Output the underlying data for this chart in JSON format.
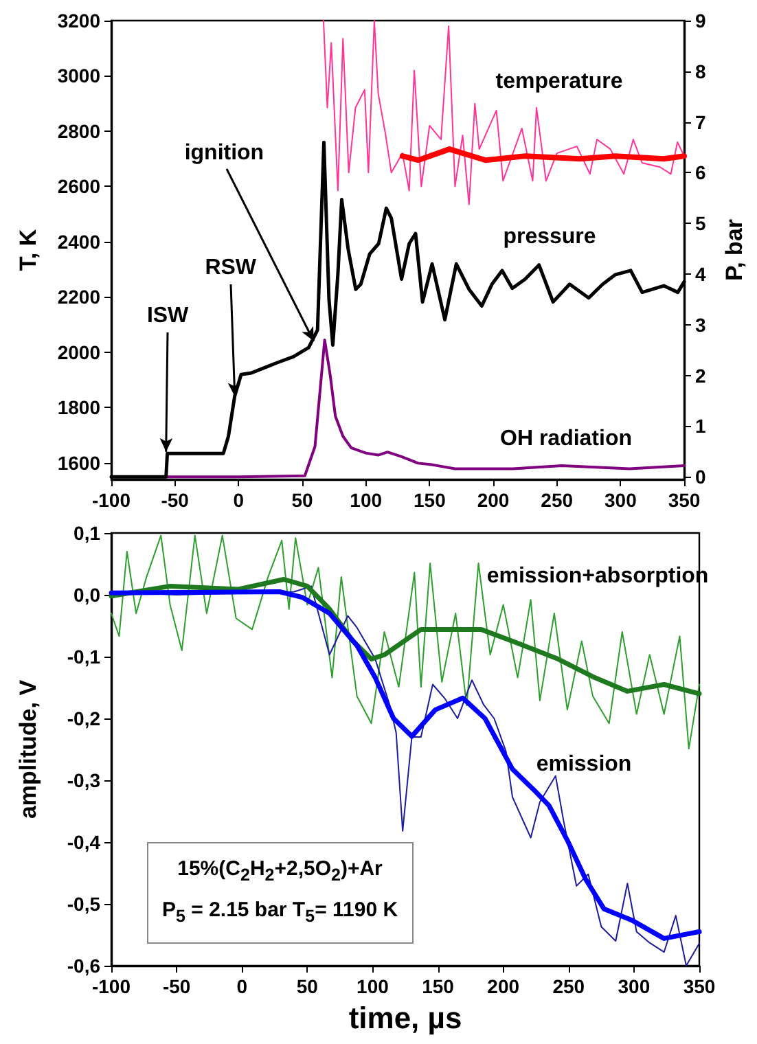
{
  "chart_data": [
    {
      "type": "line",
      "ylabel": "T, K",
      "y2label": "P, bar",
      "xlim": [
        -100,
        350
      ],
      "xticks": [
        -100,
        -50,
        0,
        50,
        100,
        150,
        200,
        250,
        300,
        350
      ],
      "ylim": [
        1540,
        3200
      ],
      "yticks": [
        1600,
        1800,
        2000,
        2200,
        2400,
        2600,
        2800,
        3000,
        3200
      ],
      "y2lim": [
        -0.05,
        9
      ],
      "y2ticks": [
        0,
        1,
        2,
        3,
        4,
        5,
        6,
        7,
        8,
        9
      ],
      "annotations": [
        {
          "text": "ISW",
          "x": -57,
          "y": 1640
        },
        {
          "text": "RSW",
          "x": -3,
          "y": 1840
        },
        {
          "text": "ignition",
          "x": 59,
          "y": 2040
        }
      ],
      "series": [
        {
          "color": "#ff3399",
          "x": [
            66.7,
            69.7,
            72.8,
            78,
            82,
            86.5,
            91.8,
            99,
            102,
            106.6,
            109.7,
            115,
            120,
            128.7,
            134,
            138,
            143.5,
            150,
            159,
            165,
            170,
            176,
            181,
            185.6,
            189,
            202.5,
            207.7,
            222.5,
            231,
            234,
            241.5,
            250,
            265.7,
            276,
            281.5,
            292,
            302.6,
            310,
            317,
            331,
            339.5,
            344.7,
            350
          ],
          "values": [
            3200,
            2885,
            3120,
            2585,
            3135,
            2650,
            2885,
            2950,
            2650,
            3200,
            2935,
            2800,
            2650,
            2720,
            2585,
            3020,
            2600,
            2820,
            2770,
            3180,
            2600,
            2785,
            2535,
            2900,
            2735,
            2875,
            2620,
            2810,
            2620,
            2885,
            2620,
            2720,
            2745,
            2645,
            2770,
            2735,
            2645,
            2770,
            2685,
            2670,
            2645,
            2760,
            2710
          ]
        },
        {
          "name": "temperature",
          "color": "#ff0000",
          "x": [
            128.7,
            141,
            165.6,
            194,
            225.6,
            268,
            296,
            334,
            350
          ],
          "values": [
            2710,
            2695,
            2735,
            2695,
            2710,
            2700,
            2710,
            2700,
            2710
          ]
        },
        {
          "name": "pressure",
          "color": "#000000",
          "axis": "y2",
          "x": [
            -100,
            -57,
            -56,
            -12,
            -8,
            -3,
            2,
            10,
            20,
            30,
            43,
            55,
            62,
            67,
            71,
            74,
            78,
            81,
            86,
            92,
            96,
            103,
            110,
            116,
            120,
            124,
            128,
            134,
            139,
            144.5,
            152,
            162,
            171,
            181,
            191,
            199,
            207,
            215,
            225,
            236,
            247,
            260,
            275,
            286,
            296,
            308,
            317,
            334,
            345,
            350
          ],
          "values": [
            0,
            0,
            0.46,
            0.46,
            0.8,
            1.6,
            2.02,
            2.05,
            2.15,
            2.25,
            2.37,
            2.55,
            2.9,
            6.6,
            3.5,
            2.6,
            4.0,
            5.47,
            4.5,
            3.7,
            3.8,
            4.4,
            4.6,
            5.3,
            5.1,
            4.5,
            3.9,
            4.6,
            4.8,
            3.45,
            4.2,
            3.1,
            4.2,
            3.7,
            3.37,
            3.8,
            4.07,
            3.72,
            3.9,
            4.18,
            3.45,
            3.8,
            3.53,
            3.8,
            3.99,
            4.07,
            3.64,
            3.77,
            3.64,
            3.85
          ]
        },
        {
          "name": "OH radiation",
          "color": "#800080",
          "axis": "y2",
          "x": [
            -100,
            0,
            52,
            60,
            67.6,
            72,
            76,
            82,
            88.6,
            100,
            109.7,
            117,
            128,
            141,
            152,
            170,
            215,
            254,
            307,
            350
          ],
          "values": [
            0,
            0,
            0.02,
            0.6,
            2.7,
            2.0,
            1.2,
            0.8,
            0.57,
            0.47,
            0.43,
            0.49,
            0.4,
            0.27,
            0.24,
            0.16,
            0.16,
            0.22,
            0.16,
            0.22
          ]
        }
      ]
    },
    {
      "type": "line",
      "xlabel": "time, µs",
      "ylabel": "amplitude, V",
      "xlim": [
        -100,
        350
      ],
      "xticks": [
        -100,
        -50,
        0,
        50,
        100,
        150,
        200,
        250,
        300,
        350
      ],
      "ylim": [
        -0.6,
        0.1
      ],
      "yticks": [
        {
          "value": -0.6,
          "label": "-0,6"
        },
        {
          "value": -0.5,
          "label": "-0,5"
        },
        {
          "value": -0.4,
          "label": "-0,4"
        },
        {
          "value": -0.3,
          "label": "-0,3"
        },
        {
          "value": -0.2,
          "label": "-0,2"
        },
        {
          "value": -0.1,
          "label": "-0,1"
        },
        {
          "value": 0,
          "label": "0,0"
        },
        {
          "value": 0.1,
          "label": "0,1"
        }
      ],
      "annotations": [
        "15%(C$_{2}$H$_{2}$+2,5O$_{2}$)+Ar",
        "P$_{5}$ = 2.15 bar   T$_{5}$= 1190 K"
      ],
      "series": [
        {
          "color": "#2e9e2e",
          "x": [
            -100,
            -94,
            -88,
            -81,
            -73,
            -62,
            -55,
            -46,
            -36,
            -27,
            -15,
            -4.5,
            7.8,
            20,
            30.5,
            36,
            41,
            50,
            58.5,
            69,
            76,
            88,
            99,
            109,
            120,
            132,
            137,
            144,
            153,
            163.5,
            172,
            181,
            190,
            200,
            211,
            221,
            228,
            239,
            249,
            260,
            268.5,
            281,
            291,
            302,
            312,
            323,
            335,
            342,
            350
          ],
          "values": [
            -0.03,
            -0.067,
            0.07,
            -0.03,
            0.029,
            0.096,
            -0.016,
            -0.09,
            0.096,
            -0.03,
            0.096,
            -0.038,
            -0.056,
            0.029,
            0.088,
            -0.023,
            0.092,
            -0.016,
            0.044,
            -0.134,
            0.029,
            -0.164,
            -0.208,
            -0.06,
            -0.149,
            0.036,
            -0.149,
            0.051,
            -0.141,
            -0.03,
            -0.179,
            0.051,
            -0.097,
            -0.016,
            -0.134,
            -0.008,
            -0.171,
            -0.03,
            -0.186,
            -0.075,
            -0.164,
            -0.208,
            -0.06,
            -0.193,
            -0.097,
            -0.193,
            -0.067,
            -0.249,
            -0.145
          ]
        },
        {
          "color": "#1c1c9c",
          "x": [
            -100,
            -50,
            0,
            40,
            43,
            53,
            67,
            81,
            88,
            102,
            113,
            118,
            123,
            130,
            137,
            146,
            155,
            165,
            176,
            185,
            193,
            202,
            207,
            221,
            228,
            240,
            246,
            256,
            265,
            275,
            286,
            295,
            302,
            312,
            323,
            332,
            340,
            350
          ],
          "values": [
            0.005,
            0,
            0.003,
            0.005,
            0.007,
            0.014,
            -0.097,
            -0.034,
            -0.053,
            -0.104,
            -0.178,
            -0.223,
            -0.382,
            -0.23,
            -0.23,
            -0.145,
            -0.167,
            -0.2,
            -0.138,
            -0.178,
            -0.2,
            -0.253,
            -0.327,
            -0.393,
            -0.335,
            -0.293,
            -0.364,
            -0.471,
            -0.452,
            -0.537,
            -0.56,
            -0.467,
            -0.545,
            -0.563,
            -0.578,
            -0.519,
            -0.6,
            -0.564
          ]
        },
        {
          "name": "emission+absorption",
          "color": "#1f7a1f",
          "x": [
            -100,
            -55,
            -2.7,
            32,
            50,
            67,
            85,
            99,
            109,
            137,
            183,
            207,
            242,
            270,
            295,
            323,
            350
          ],
          "values": [
            -0.002,
            0.014,
            0.009,
            0.025,
            0.014,
            -0.023,
            -0.075,
            -0.104,
            -0.097,
            -0.056,
            -0.056,
            -0.075,
            -0.104,
            -0.134,
            -0.156,
            -0.145,
            -0.16
          ]
        },
        {
          "name": "emission",
          "color": "#0000ff",
          "x": [
            -100,
            -37.7,
            28.8,
            46,
            67,
            88,
            102,
            116,
            130,
            148,
            169,
            186,
            207,
            225,
            235,
            249,
            263,
            277,
            298,
            323,
            350
          ],
          "values": [
            0.003,
            0.004,
            0.005,
            -0.004,
            -0.03,
            -0.082,
            -0.134,
            -0.2,
            -0.229,
            -0.186,
            -0.167,
            -0.2,
            -0.282,
            -0.319,
            -0.341,
            -0.397,
            -0.46,
            -0.508,
            -0.526,
            -0.556,
            -0.545
          ]
        }
      ]
    }
  ]
}
